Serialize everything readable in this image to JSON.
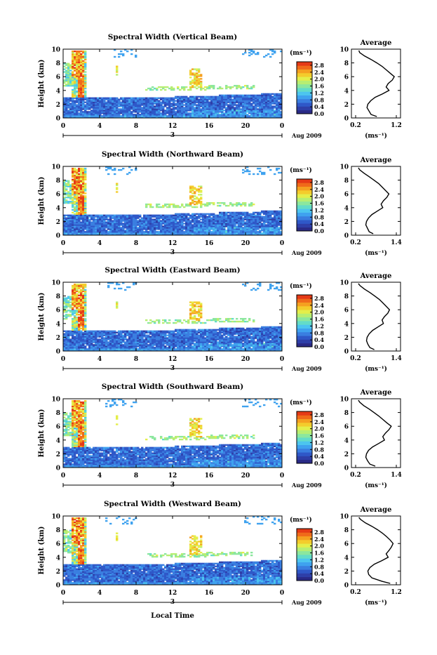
{
  "figure": {
    "xlabel": "Local Time"
  },
  "colormap": [
    "#2a2a86",
    "#2e3fa8",
    "#2f58c8",
    "#3a7ee0",
    "#3fa2ef",
    "#4cc5ef",
    "#63dcc8",
    "#8be79e",
    "#b7ee72",
    "#e4ee4a",
    "#f4cc2c",
    "#f5a020",
    "#f06a1a",
    "#e53a16"
  ],
  "chart_data": [
    {
      "type": "heatmap",
      "title": "Spectral Width (Vertical Beam)",
      "ylabel": "Height (km)",
      "xticks": [
        "0",
        "4",
        "8",
        "12",
        "16",
        "20",
        "0"
      ],
      "yticks": [
        "0",
        "2",
        "4",
        "6",
        "8",
        "10"
      ],
      "xlim": [
        0,
        24
      ],
      "ylim": [
        0,
        10
      ],
      "date_label": "3",
      "month_label": "Aug 2009",
      "colorbar": {
        "units": "(ms⁻¹)",
        "ticks": [
          "0.0",
          "0.4",
          "0.8",
          "1.2",
          "1.6",
          "2.0",
          "2.4",
          "2.8"
        ],
        "range": [
          0,
          3.0
        ]
      },
      "average_profile": {
        "title": "Average",
        "xlabel": "(ms⁻¹)",
        "xticks": [
          "0.2",
          "1.2"
        ],
        "yticks": [
          "0",
          "2",
          "4",
          "6",
          "8",
          "10"
        ],
        "xlim": [
          0.2,
          1.2
        ],
        "height": [
          0.2,
          0.5,
          1.0,
          1.5,
          2.0,
          2.5,
          3.0,
          3.5,
          4.0,
          4.5,
          5.0,
          5.5,
          6.0,
          6.5,
          7.0,
          7.5,
          8.0,
          8.5,
          9.0,
          9.5,
          9.8
        ],
        "values": [
          0.72,
          0.58,
          0.53,
          0.48,
          0.5,
          0.57,
          0.68,
          0.86,
          1.02,
          0.95,
          1.0,
          1.1,
          1.15,
          1.05,
          0.95,
          0.85,
          0.72,
          0.58,
          0.42,
          0.3,
          0.28
        ]
      }
    },
    {
      "type": "heatmap",
      "title": "Spectral Width (Northward Beam)",
      "ylabel": "Height (km)",
      "xticks": [
        "0",
        "4",
        "8",
        "12",
        "16",
        "20",
        "0"
      ],
      "yticks": [
        "0",
        "2",
        "4",
        "6",
        "8",
        "10"
      ],
      "xlim": [
        0,
        24
      ],
      "ylim": [
        0,
        10
      ],
      "date_label": "3",
      "month_label": "Aug 2009",
      "colorbar": {
        "units": "(ms⁻¹)",
        "ticks": [
          "0.0",
          "0.4",
          "0.8",
          "1.2",
          "1.6",
          "2.0",
          "2.4",
          "2.8"
        ],
        "range": [
          0,
          3.0
        ]
      },
      "average_profile": {
        "title": "Average",
        "xlabel": "(ms⁻¹)",
        "xticks": [
          "0.2",
          "1.4"
        ],
        "yticks": [
          "0",
          "2",
          "4",
          "6",
          "8",
          "10"
        ],
        "xlim": [
          0.2,
          1.4
        ],
        "height": [
          0.2,
          0.5,
          1.0,
          1.5,
          2.0,
          2.5,
          3.0,
          3.5,
          4.0,
          4.5,
          5.0,
          5.5,
          6.0,
          6.5,
          7.0,
          7.5,
          8.0,
          8.5,
          9.0,
          9.5,
          9.8
        ],
        "values": [
          0.72,
          0.6,
          0.55,
          0.5,
          0.52,
          0.58,
          0.68,
          0.84,
          1.0,
          0.95,
          1.02,
          1.12,
          1.18,
          1.08,
          0.98,
          0.88,
          0.74,
          0.6,
          0.45,
          0.32,
          0.28
        ]
      }
    },
    {
      "type": "heatmap",
      "title": "Spectral Width (Eastward Beam)",
      "ylabel": "Height (km)",
      "xticks": [
        "0",
        "4",
        "8",
        "12",
        "16",
        "20",
        "0"
      ],
      "yticks": [
        "0",
        "2",
        "4",
        "6",
        "8",
        "10"
      ],
      "xlim": [
        0,
        24
      ],
      "ylim": [
        0,
        10
      ],
      "date_label": "3",
      "month_label": "Aug 2009",
      "colorbar": {
        "units": "(ms⁻¹)",
        "ticks": [
          "0.0",
          "0.4",
          "0.8",
          "1.2",
          "1.6",
          "2.0",
          "2.4",
          "2.8"
        ],
        "range": [
          0,
          3.0
        ]
      },
      "average_profile": {
        "title": "Average",
        "xlabel": "(ms⁻¹)",
        "xticks": [
          "0.2",
          "1.4"
        ],
        "yticks": [
          "0",
          "2",
          "4",
          "6",
          "8",
          "10"
        ],
        "xlim": [
          0.2,
          1.4
        ],
        "height": [
          0.2,
          0.5,
          1.0,
          1.5,
          2.0,
          2.5,
          3.0,
          3.5,
          4.0,
          4.5,
          5.0,
          5.5,
          6.0,
          6.5,
          7.0,
          7.5,
          8.0,
          8.5,
          9.0,
          9.5,
          9.8
        ],
        "values": [
          0.75,
          0.62,
          0.56,
          0.52,
          0.54,
          0.6,
          0.7,
          0.86,
          1.02,
          0.98,
          1.05,
          1.15,
          1.2,
          1.1,
          1.0,
          0.9,
          0.76,
          0.62,
          0.46,
          0.33,
          0.28
        ]
      }
    },
    {
      "type": "heatmap",
      "title": "Spectral Width (Southward Beam)",
      "ylabel": "Height (km)",
      "xticks": [
        "0",
        "4",
        "8",
        "12",
        "16",
        "20",
        "0"
      ],
      "yticks": [
        "0",
        "2",
        "4",
        "6",
        "8",
        "10"
      ],
      "xlim": [
        0,
        24
      ],
      "ylim": [
        0,
        10
      ],
      "date_label": "3",
      "month_label": "Aug 2009",
      "colorbar": {
        "units": "(ms⁻¹)",
        "ticks": [
          "0.0",
          "0.4",
          "0.8",
          "1.2",
          "1.6",
          "2.0",
          "2.4",
          "2.8"
        ],
        "range": [
          0,
          3.0
        ]
      },
      "average_profile": {
        "title": "Average",
        "xlabel": "(ms⁻¹)",
        "xticks": [
          "0.2",
          "1.4"
        ],
        "yticks": [
          "0",
          "2",
          "4",
          "6",
          "8",
          "10"
        ],
        "xlim": [
          0.2,
          1.4
        ],
        "height": [
          0.2,
          0.5,
          1.0,
          1.5,
          2.0,
          2.5,
          3.0,
          3.5,
          4.0,
          4.5,
          5.0,
          5.5,
          6.0,
          6.5,
          7.0,
          7.5,
          8.0,
          8.5,
          9.0,
          9.5,
          9.8
        ],
        "values": [
          0.78,
          0.62,
          0.55,
          0.5,
          0.52,
          0.58,
          0.7,
          0.88,
          1.05,
          1.0,
          1.08,
          1.18,
          1.25,
          1.12,
          1.0,
          0.88,
          0.74,
          0.6,
          0.44,
          0.32,
          0.28
        ]
      }
    },
    {
      "type": "heatmap",
      "title": "Spectral Width (Westward Beam)",
      "ylabel": "Height (km)",
      "xticks": [
        "0",
        "4",
        "8",
        "12",
        "16",
        "20",
        "0"
      ],
      "yticks": [
        "0",
        "2",
        "4",
        "6",
        "8",
        "10"
      ],
      "xlim": [
        0,
        24
      ],
      "ylim": [
        0,
        10
      ],
      "date_label": "3",
      "month_label": "Aug 2009",
      "colorbar": {
        "units": "(ms⁻¹)",
        "ticks": [
          "0.0",
          "0.4",
          "0.8",
          "1.2",
          "1.6",
          "2.0",
          "2.4",
          "2.8"
        ],
        "range": [
          0,
          3.0
        ]
      },
      "average_profile": {
        "title": "Average",
        "xlabel": "(ms⁻¹)",
        "xticks": [
          "0.2",
          "1.2"
        ],
        "yticks": [
          "0",
          "2",
          "4",
          "6",
          "8",
          "10"
        ],
        "xlim": [
          0.2,
          1.2
        ],
        "height": [
          0.2,
          0.5,
          1.0,
          1.5,
          2.0,
          2.5,
          3.0,
          3.5,
          4.0,
          4.5,
          5.0,
          5.5,
          6.0,
          6.5,
          7.0,
          7.5,
          8.0,
          8.5,
          9.0,
          9.5,
          9.8
        ],
        "values": [
          1.05,
          0.85,
          0.6,
          0.52,
          0.5,
          0.55,
          0.66,
          0.84,
          1.0,
          0.95,
          1.02,
          1.08,
          1.12,
          1.05,
          0.96,
          0.86,
          0.74,
          0.6,
          0.44,
          0.32,
          0.28
        ]
      }
    }
  ]
}
